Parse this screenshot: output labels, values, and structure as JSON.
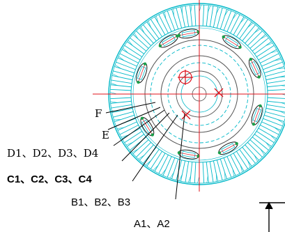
{
  "labels": {
    "f": "F",
    "e": "E",
    "d": "D1、D2、D3、D4",
    "c": "C1、C2、C3、C4",
    "b": "B1、B2、B3",
    "a": "A1、A2"
  },
  "colors": {
    "cyan": "#00b8c8",
    "red": "#e0101a",
    "black": "#000000",
    "green": "#1aa04a",
    "gray": "#555555"
  }
}
